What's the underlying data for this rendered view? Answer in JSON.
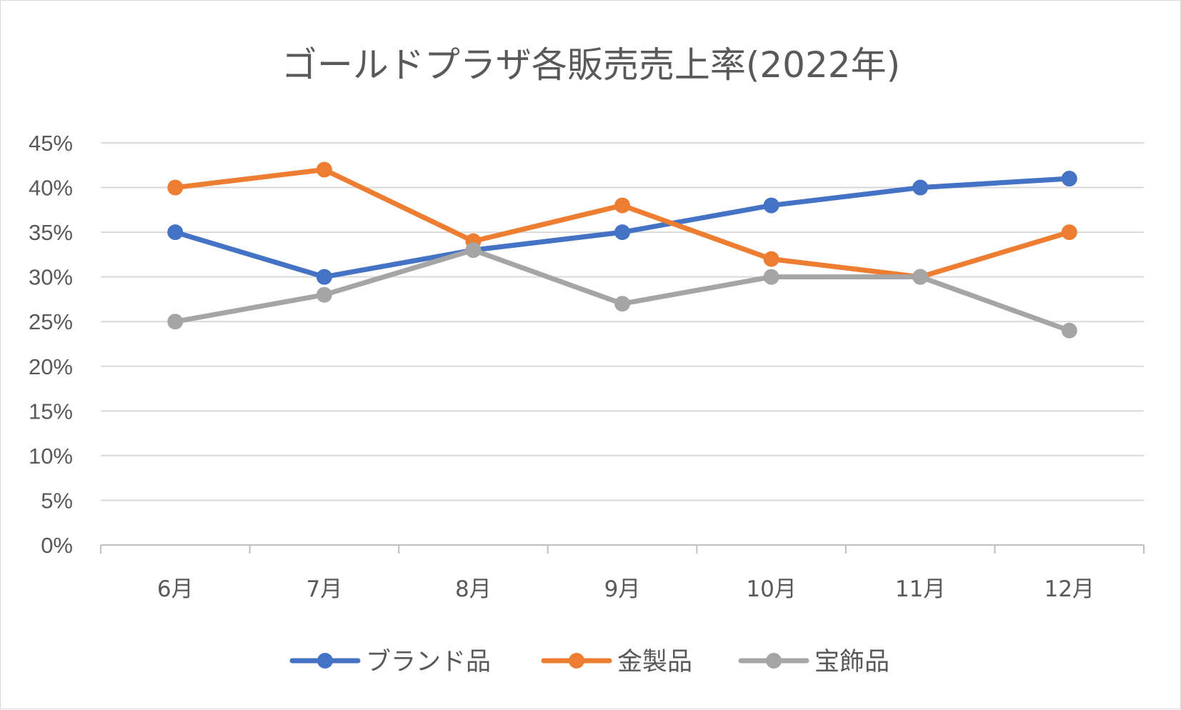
{
  "chart_data": {
    "type": "line",
    "title": "ゴールドプラザ各販売売上率(2022年)",
    "xlabel": "",
    "ylabel": "",
    "categories": [
      "6月",
      "7月",
      "8月",
      "9月",
      "10月",
      "11月",
      "12月"
    ],
    "ylim": [
      0,
      45
    ],
    "yticks": [
      0,
      5,
      10,
      15,
      20,
      25,
      30,
      35,
      40,
      45
    ],
    "ytick_labels": [
      "0%",
      "5%",
      "10%",
      "15%",
      "20%",
      "25%",
      "30%",
      "35%",
      "40%",
      "45%"
    ],
    "grid": true,
    "legend": "bottom",
    "series": [
      {
        "name": "ブランド品",
        "color": "#4472c4",
        "values": [
          35,
          30,
          33,
          35,
          38,
          40,
          41
        ]
      },
      {
        "name": "金製品",
        "color": "#ed7d31",
        "values": [
          40,
          42,
          34,
          38,
          32,
          30,
          35
        ]
      },
      {
        "name": "宝飾品",
        "color": "#a5a5a5",
        "values": [
          25,
          28,
          33,
          27,
          30,
          30,
          24
        ]
      }
    ]
  }
}
